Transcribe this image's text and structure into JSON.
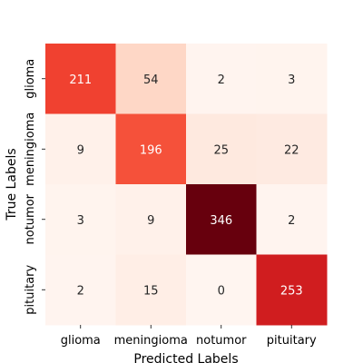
{
  "chart_data": {
    "type": "heatmap",
    "title": "",
    "xlabel": "Predicted Labels",
    "ylabel": "True Labels",
    "x_categories": [
      "glioma",
      "meningioma",
      "notumor",
      "pituitary"
    ],
    "y_categories": [
      "glioma",
      "meningioma",
      "notumor",
      "pituitary"
    ],
    "matrix": [
      [
        211,
        54,
        2,
        3
      ],
      [
        9,
        196,
        25,
        22
      ],
      [
        3,
        9,
        346,
        2
      ],
      [
        2,
        15,
        0,
        253
      ]
    ],
    "colormap": "Reds",
    "value_range": [
      0,
      346
    ],
    "colorbar": false,
    "grid": false
  }
}
